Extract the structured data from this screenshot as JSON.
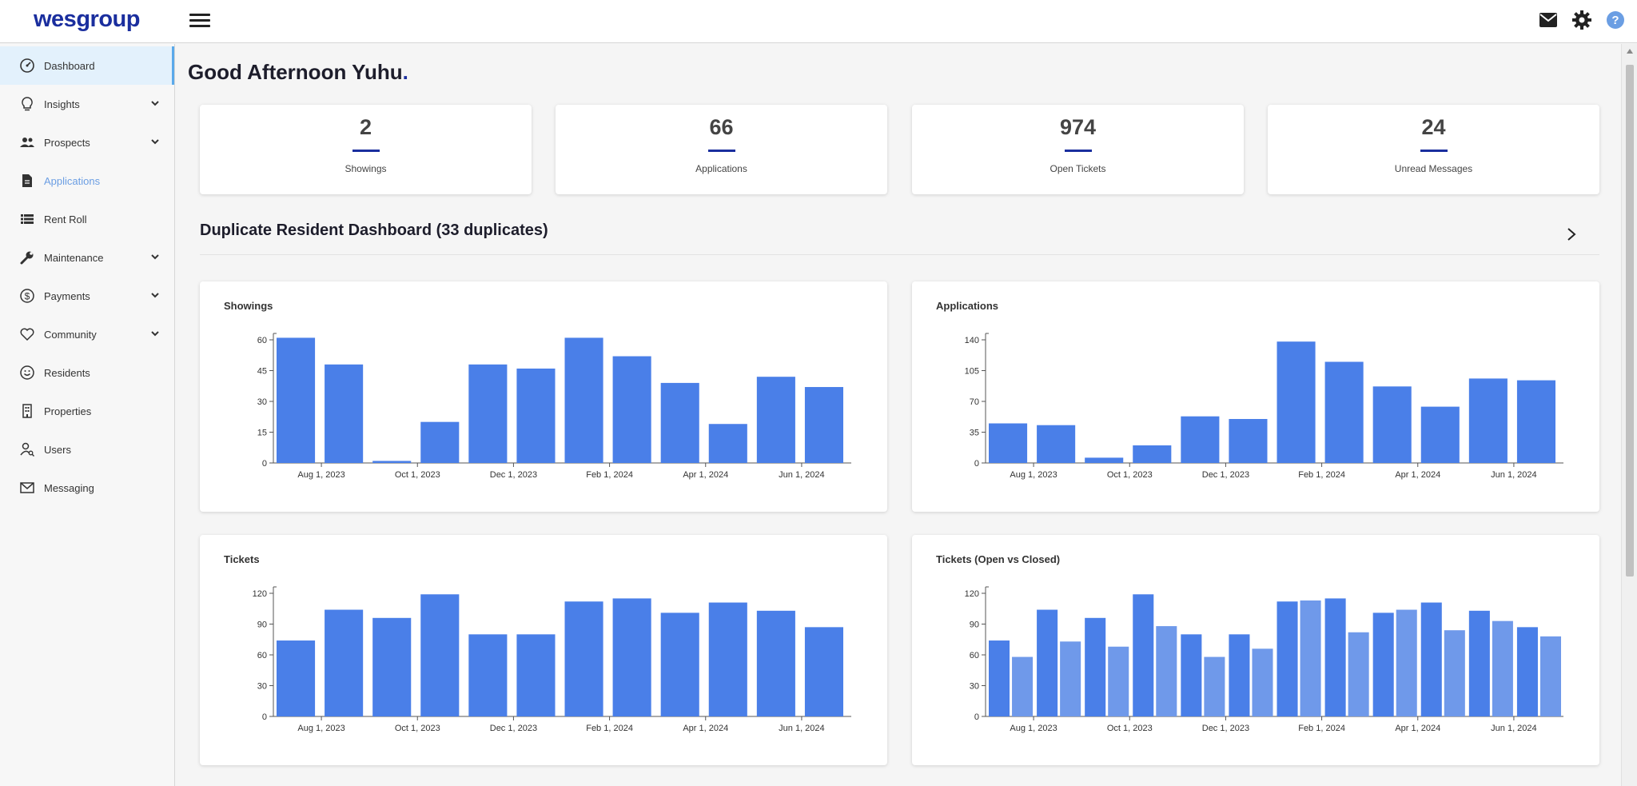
{
  "app": {
    "logo": "wesgroup"
  },
  "header": {
    "icons": [
      "menu-icon",
      "mail-icon",
      "gear-icon",
      "help-icon"
    ]
  },
  "sidebar": {
    "items": [
      {
        "label": "Dashboard",
        "icon": "dashboard-icon",
        "expandable": false,
        "state": "active"
      },
      {
        "label": "Insights",
        "icon": "lightbulb-icon",
        "expandable": true,
        "state": "normal"
      },
      {
        "label": "Prospects",
        "icon": "people-icon",
        "expandable": true,
        "state": "normal"
      },
      {
        "label": "Applications",
        "icon": "document-icon",
        "expandable": false,
        "state": "muted"
      },
      {
        "label": "Rent Roll",
        "icon": "list-icon",
        "expandable": false,
        "state": "normal"
      },
      {
        "label": "Maintenance",
        "icon": "wrench-icon",
        "expandable": true,
        "state": "normal"
      },
      {
        "label": "Payments",
        "icon": "dollar-icon",
        "expandable": true,
        "state": "normal"
      },
      {
        "label": "Community",
        "icon": "heart-icon",
        "expandable": true,
        "state": "normal"
      },
      {
        "label": "Residents",
        "icon": "smile-icon",
        "expandable": false,
        "state": "normal"
      },
      {
        "label": "Properties",
        "icon": "building-icon",
        "expandable": false,
        "state": "normal"
      },
      {
        "label": "Users",
        "icon": "user-search-icon",
        "expandable": false,
        "state": "normal"
      },
      {
        "label": "Messaging",
        "icon": "envelope-icon",
        "expandable": false,
        "state": "normal"
      }
    ]
  },
  "main": {
    "greeting": "Good Afternoon Yuhu",
    "greeting_dot": ".",
    "stats": [
      {
        "value": "2",
        "label": "Showings"
      },
      {
        "value": "66",
        "label": "Applications"
      },
      {
        "value": "974",
        "label": "Open Tickets"
      },
      {
        "value": "24",
        "label": "Unread Messages"
      }
    ],
    "section_title": "Duplicate Resident Dashboard (33 duplicates)"
  },
  "colors": {
    "bar": "#4a7fe8",
    "bar_light": "#6f99ea",
    "accent": "#1a2e9e"
  },
  "chart_data": [
    {
      "type": "bar",
      "title": "Showings",
      "x_tick_labels": [
        "Aug 1, 2023",
        "Oct 1, 2023",
        "Dec 1, 2023",
        "Feb 1, 2024",
        "Apr 1, 2024",
        "Jun 1, 2024"
      ],
      "ylim": [
        0,
        60
      ],
      "yticks": [
        0,
        15,
        30,
        45,
        60
      ],
      "values": [
        61,
        48,
        1,
        20,
        48,
        46,
        61,
        52,
        39,
        19,
        42,
        37
      ]
    },
    {
      "type": "bar",
      "title": "Applications",
      "x_tick_labels": [
        "Aug 1, 2023",
        "Oct 1, 2023",
        "Dec 1, 2023",
        "Feb 1, 2024",
        "Apr 1, 2024",
        "Jun 1, 2024"
      ],
      "ylim": [
        0,
        140
      ],
      "yticks": [
        0,
        35,
        70,
        105,
        140
      ],
      "values": [
        45,
        43,
        6,
        20,
        53,
        50,
        138,
        115,
        87,
        64,
        96,
        94
      ]
    },
    {
      "type": "bar",
      "title": "Tickets",
      "x_tick_labels": [
        "Aug 1, 2023",
        "Oct 1, 2023",
        "Dec 1, 2023",
        "Feb 1, 2024",
        "Apr 1, 2024",
        "Jun 1, 2024"
      ],
      "ylim": [
        0,
        120
      ],
      "yticks": [
        0,
        30,
        60,
        90,
        120
      ],
      "values": [
        74,
        104,
        96,
        119,
        80,
        80,
        112,
        115,
        101,
        111,
        103,
        87
      ]
    },
    {
      "type": "bar",
      "title": "Tickets (Open vs Closed)",
      "x_tick_labels": [
        "Aug 1, 2023",
        "Oct 1, 2023",
        "Dec 1, 2023",
        "Feb 1, 2024",
        "Apr 1, 2024",
        "Jun 1, 2024"
      ],
      "ylim": [
        0,
        120
      ],
      "yticks": [
        0,
        30,
        60,
        90,
        120
      ],
      "series": [
        {
          "values": [
            74,
            104,
            96,
            119,
            80,
            80,
            112,
            115,
            101,
            111,
            103,
            87
          ]
        },
        {
          "values": [
            58,
            73,
            68,
            88,
            58,
            66,
            113,
            82,
            104,
            84,
            93,
            78
          ]
        }
      ]
    }
  ]
}
